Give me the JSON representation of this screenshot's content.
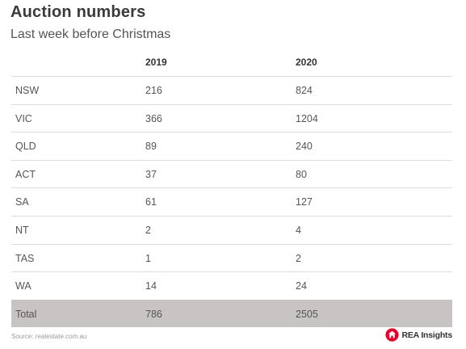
{
  "title": "Auction numbers",
  "subtitle": "Last week before Christmas",
  "columns": [
    "",
    "2019",
    "2020"
  ],
  "chart_data": {
    "type": "table",
    "title": "Auction numbers",
    "subtitle": "Last week before Christmas",
    "columns": [
      "",
      "2019",
      "2020"
    ],
    "rows": [
      {
        "state": "NSW",
        "y2019": "216",
        "y2020": "824"
      },
      {
        "state": "VIC",
        "y2019": "366",
        "y2020": "1204"
      },
      {
        "state": "QLD",
        "y2019": "89",
        "y2020": "240"
      },
      {
        "state": "ACT",
        "y2019": "37",
        "y2020": "80"
      },
      {
        "state": "SA",
        "y2019": "61",
        "y2020": "127"
      },
      {
        "state": "NT",
        "y2019": "2",
        "y2020": "4"
      },
      {
        "state": "TAS",
        "y2019": "1",
        "y2020": "2"
      },
      {
        "state": "WA",
        "y2019": "14",
        "y2020": "24"
      }
    ],
    "total": {
      "state": "Total",
      "y2019": "786",
      "y2020": "2505"
    }
  },
  "source": "Source: realestate.com.au",
  "logo": {
    "text": "REA Insights",
    "icon": "rea-house-icon",
    "color": "#e4002b"
  },
  "colors": {
    "total_row": "#c8c4c4",
    "divider": "#dcdcdc"
  }
}
